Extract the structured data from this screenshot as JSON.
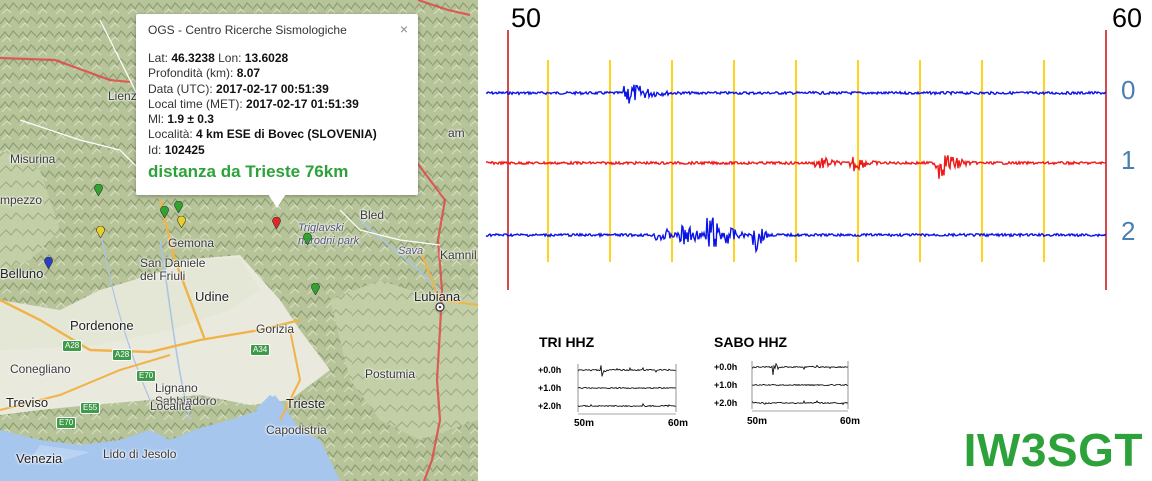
{
  "map": {
    "places": [
      "Lienz",
      "Misurina",
      "mpezzo",
      "Belluno",
      "Gemona",
      "San Daniele del Friuli",
      "Udine",
      "Pordenone",
      "Conegliano",
      "Treviso",
      "Venezia",
      "Lido di Jesolo",
      "Lignano Sabbiadoro",
      "Località",
      "Gorizia",
      "Trieste",
      "Capodistria",
      "Postumia",
      "Lubiana",
      "Bled",
      "Kamnil",
      "am",
      "Triglavski narodni park",
      "Sava"
    ],
    "roads": [
      "A28",
      "A28",
      "A34",
      "E70",
      "E70",
      "E55"
    ],
    "markers": [
      {
        "color": "#2fa52f"
      },
      {
        "color": "#2fa52f"
      },
      {
        "color": "#2fa52f"
      },
      {
        "color": "#e7d02a"
      },
      {
        "color": "#e7d02a"
      },
      {
        "color": "#2a3ec8"
      },
      {
        "color": "#e02626"
      },
      {
        "color": "#2fa52f"
      },
      {
        "color": "#2fa52f"
      }
    ],
    "border_color": "#e04848"
  },
  "popup": {
    "title": "OGS - Centro Ricerche Sismologiche",
    "close": "×",
    "lat_label": "Lat:",
    "lat": "46.3238",
    "lon_label": "Lon:",
    "lon": "13.6028",
    "depth_label": "Profondità (km):",
    "depth": "8.07",
    "utc_label": "Data (UTC):",
    "utc": "2017-02-17 00:51:39",
    "local_label": "Local time (MET):",
    "local": "2017-02-17 01:51:39",
    "ml_label": "Ml:",
    "ml": "1.9 ± 0.3",
    "loc_label": "Località:",
    "loc": "4 km ESE di Bovec (SLOVENIA)",
    "id_label": "Id:",
    "id": "102425",
    "distance": "distanza da Trieste 76km"
  },
  "seismogram": {
    "start_label": "50",
    "end_label": "60",
    "channels": [
      {
        "label": "0",
        "color": "#0a14e6"
      },
      {
        "label": "1",
        "color": "#ee1a1a"
      },
      {
        "label": "2",
        "color": "#0a14e6"
      }
    ],
    "marker_color": "#ffd21e",
    "bound_color": "#c81e1e"
  },
  "mini_plots": [
    {
      "title": "TRI HHZ",
      "rows": [
        "+0.0h",
        "+1.0h",
        "+2.0h"
      ],
      "x_start": "50m",
      "x_end": "60m"
    },
    {
      "title": "SABO HHZ",
      "rows": [
        "+0.0h",
        "+1.0h",
        "+2.0h"
      ],
      "x_start": "50m",
      "x_end": "60m"
    }
  ],
  "callsign": "IW3SGT"
}
